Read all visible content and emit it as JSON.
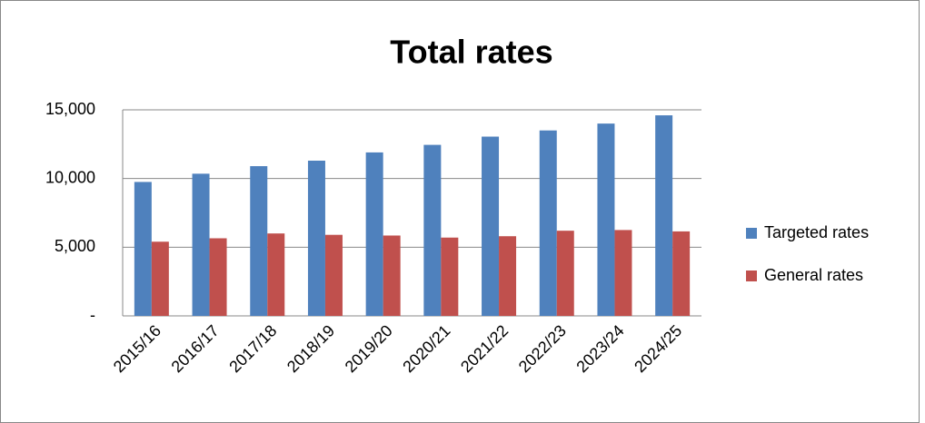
{
  "chart_data": {
    "type": "bar",
    "title": "Total rates",
    "categories": [
      "2015/16",
      "2016/17",
      "2017/18",
      "2018/19",
      "2019/20",
      "2020/21",
      "2021/22",
      "2022/23",
      "2023/24",
      "2024/25"
    ],
    "series": [
      {
        "name": "Targeted rates",
        "color": "#4f81bd",
        "values": [
          9750,
          10350,
          10900,
          11300,
          11900,
          12450,
          13050,
          13500,
          14000,
          14600
        ]
      },
      {
        "name": "General rates",
        "color": "#c0504d",
        "values": [
          5400,
          5650,
          6000,
          5900,
          5850,
          5700,
          5800,
          6200,
          6250,
          6150
        ]
      }
    ],
    "ylim": [
      0,
      15000
    ],
    "yticks": [
      {
        "value": 0,
        "label": "-"
      },
      {
        "value": 5000,
        "label": "5,000"
      },
      {
        "value": 10000,
        "label": "10,000"
      },
      {
        "value": 15000,
        "label": "15,000"
      }
    ],
    "grid": true,
    "legend": "right"
  }
}
